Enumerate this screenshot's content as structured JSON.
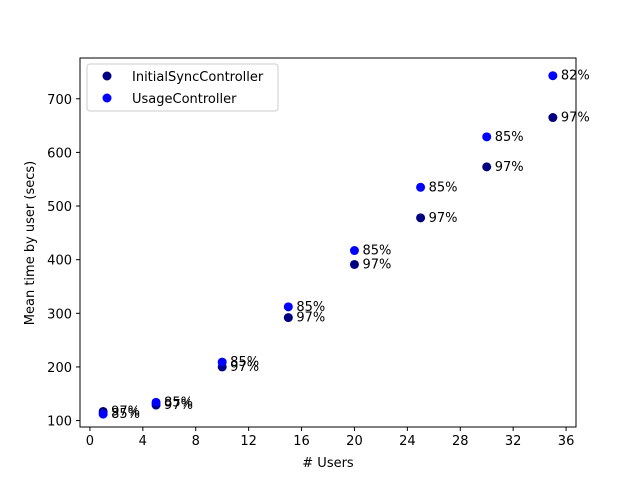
{
  "chart_data": {
    "type": "scatter",
    "title": "",
    "xlabel": "# Users",
    "ylabel": "Mean time by user (secs)",
    "xlim": [
      -0.75,
      36.75
    ],
    "ylim": [
      88,
      776
    ],
    "xticks": [
      0,
      4,
      8,
      12,
      16,
      20,
      24,
      28,
      32,
      36
    ],
    "yticks": [
      100,
      200,
      300,
      400,
      500,
      600,
      700
    ],
    "grid": false,
    "legend_position": "top-left",
    "series": [
      {
        "name": "InitialSyncController",
        "color": "#000080",
        "x": [
          1,
          5,
          10,
          15,
          20,
          25,
          30,
          35
        ],
        "y": [
          117,
          129,
          200,
          292,
          391,
          478,
          573,
          665
        ],
        "labels": [
          "97%",
          "97%",
          "97%",
          "97%",
          "97%",
          "97%",
          "97%",
          "97%"
        ]
      },
      {
        "name": "UsageController",
        "color": "#0000ff",
        "x": [
          1,
          5,
          10,
          15,
          20,
          25,
          30,
          35
        ],
        "y": [
          112,
          134,
          209,
          312,
          417,
          535,
          629,
          743
        ],
        "labels": [
          "85%",
          "85%",
          "85%",
          "85%",
          "85%",
          "85%",
          "85%",
          "82%"
        ]
      }
    ]
  }
}
